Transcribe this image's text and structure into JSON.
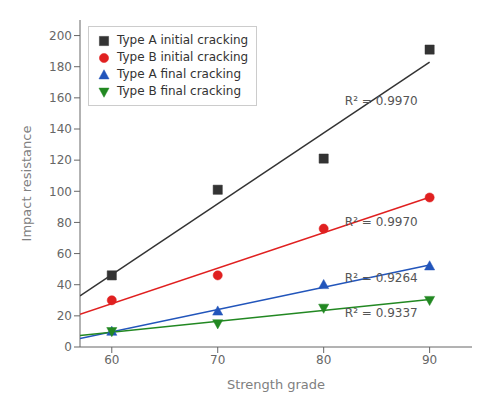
{
  "chart_data": {
    "type": "scatter",
    "xlabel": "Strength grade",
    "ylabel": "Impact resistance",
    "x": [
      60,
      70,
      80,
      90
    ],
    "xlim": [
      57,
      94
    ],
    "xticks": [
      60,
      70,
      80,
      90
    ],
    "ylim": [
      0,
      210
    ],
    "yticks": [
      0,
      20,
      40,
      60,
      80,
      100,
      120,
      140,
      160,
      180,
      200
    ],
    "grid": false,
    "legend": "upper left",
    "series": [
      {
        "name": "Type A initial cracking",
        "color": "#333333",
        "marker": "square",
        "values": [
          46,
          101,
          121,
          191
        ],
        "trendline": {
          "x": [
            57,
            90
          ],
          "values": [
            32.85,
            183
          ]
        }
      },
      {
        "name": "Type B initial cracking",
        "color": "#e02020",
        "marker": "circle",
        "values": [
          30,
          46,
          76,
          96
        ],
        "trendline": {
          "x": [
            57,
            90
          ],
          "values": [
            20.96,
            96.2
          ]
        }
      },
      {
        "name": "Type A final cracking",
        "color": "#2255bb",
        "marker": "triangle_up",
        "values": [
          10,
          23,
          40,
          52
        ],
        "trendline": {
          "x": [
            57,
            90
          ],
          "values": [
            5.51,
            52.7
          ]
        }
      },
      {
        "name": "Type B final cracking",
        "color": "#228822",
        "marker": "triangle_down",
        "values": [
          10,
          15,
          25,
          30
        ],
        "trendline": {
          "x": [
            57,
            90
          ],
          "values": [
            7.4,
            30.5
          ]
        }
      }
    ],
    "annotations": [
      {
        "text": "R² = 0.9970",
        "x": 82,
        "y": 158,
        "color": "#555555"
      },
      {
        "text": "R² = 0.9970",
        "x": 82,
        "y": 80,
        "color": "#555555"
      },
      {
        "text": "R² = 0.9264",
        "x": 82,
        "y": 44,
        "color": "#555555"
      },
      {
        "text": "R² = 0.9337",
        "x": 82,
        "y": 22,
        "color": "#555555"
      }
    ]
  }
}
